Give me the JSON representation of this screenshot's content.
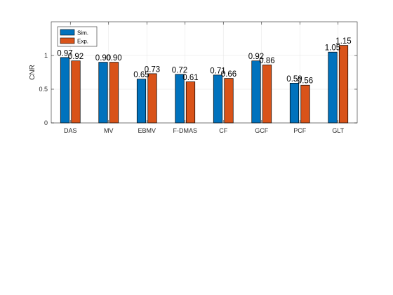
{
  "chart_data": {
    "type": "bar",
    "title": "",
    "xlabel": "",
    "ylabel": "CNR",
    "ylim": [
      0,
      1.5
    ],
    "yticks": [
      0,
      0.5,
      1
    ],
    "grid": true,
    "legend_position": "top-left",
    "categories": [
      "DAS",
      "MV",
      "EBMV",
      "F-DMAS",
      "CF",
      "GCF",
      "PCF",
      "GLT"
    ],
    "series": [
      {
        "name": "Sim.",
        "color": "#0072BD",
        "values": [
          0.97,
          0.9,
          0.65,
          0.72,
          0.71,
          0.92,
          0.59,
          1.05
        ],
        "labels": [
          "0.97",
          "0.90",
          "0.65",
          "0.72",
          "0.71",
          "0.92",
          "0.59",
          "1.05"
        ]
      },
      {
        "name": "Exp.",
        "color": "#D95319",
        "values": [
          0.92,
          0.9,
          0.73,
          0.61,
          0.66,
          0.86,
          0.56,
          1.15
        ],
        "labels": [
          "0.92",
          "0.90",
          "0.73",
          "0.61",
          "0.66",
          "0.86",
          "0.56",
          "1.15"
        ]
      }
    ]
  }
}
